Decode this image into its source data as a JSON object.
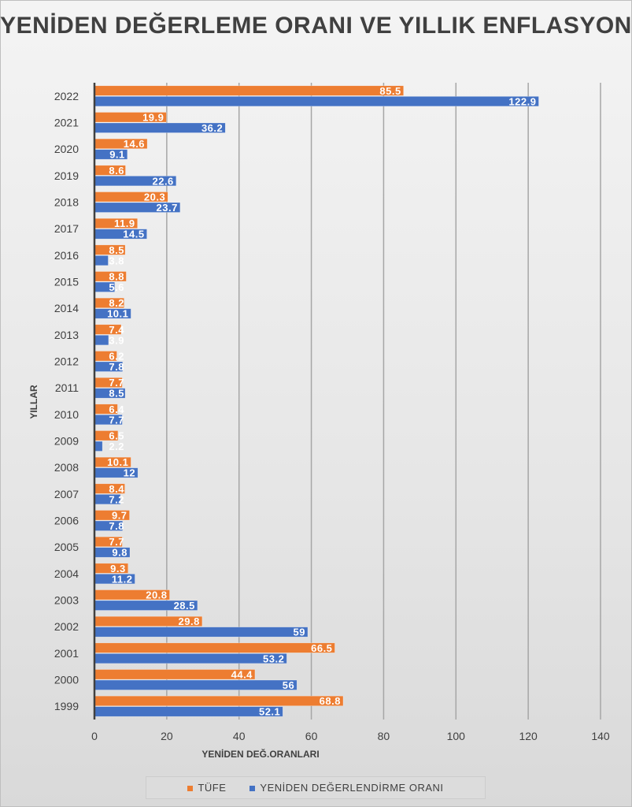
{
  "chart_data": {
    "type": "bar",
    "orientation": "horizontal",
    "title": "YENİDEN DEĞERLEME ORANI VE YILLIK ENFLASYON",
    "xlabel": "YENİDEN DEĞ.ORANLARI",
    "ylabel": "YILLAR",
    "xlim": [
      0,
      140
    ],
    "xticks": [
      0,
      20,
      40,
      60,
      80,
      100,
      120,
      140
    ],
    "grid": true,
    "legend_position": "bottom",
    "categories": [
      "2022",
      "2021",
      "2020",
      "2019",
      "2018",
      "2017",
      "2016",
      "2015",
      "2014",
      "2013",
      "2012",
      "2011",
      "2010",
      "2009",
      "2008",
      "2007",
      "2006",
      "2005",
      "2004",
      "2003",
      "2002",
      "2001",
      "2000",
      "1999"
    ],
    "series": [
      {
        "name": "TÜFE",
        "color": "#ed7d31",
        "values": [
          85.5,
          19.9,
          14.6,
          8.6,
          20.3,
          11.9,
          8.5,
          8.8,
          8.2,
          7.4,
          6.2,
          7.7,
          6.4,
          6.5,
          10.1,
          8.4,
          9.7,
          7.7,
          9.3,
          20.8,
          29.8,
          66.5,
          44.4,
          68.8
        ]
      },
      {
        "name": "YENİDEN DEĞERLENDİRME ORANI",
        "color": "#4472c4",
        "values": [
          122.9,
          36.2,
          9.1,
          22.6,
          23.7,
          14.5,
          3.8,
          5.6,
          10.1,
          3.9,
          7.8,
          8.5,
          7.7,
          2.2,
          12,
          7.2,
          7.8,
          9.8,
          11.2,
          28.5,
          59,
          53.2,
          56,
          52.1
        ]
      }
    ]
  }
}
